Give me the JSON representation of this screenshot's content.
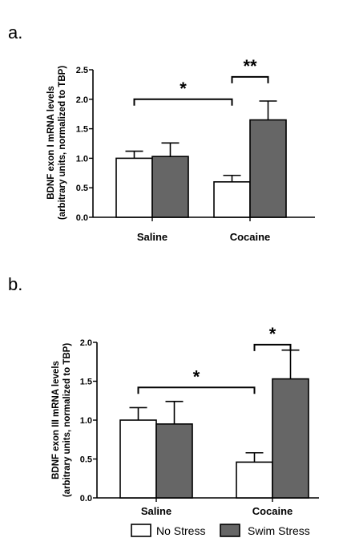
{
  "chart_data": [
    {
      "panel_label": "a.",
      "type": "bar",
      "categories": [
        "Saline",
        "Cocaine"
      ],
      "series": [
        {
          "name": "No Stress",
          "values": [
            1.0,
            0.6
          ],
          "errors": [
            0.12,
            0.11
          ],
          "color": "#ffffff"
        },
        {
          "name": "Swim Stress",
          "values": [
            1.03,
            1.65
          ],
          "errors": [
            0.23,
            0.32
          ],
          "color": "#666666"
        }
      ],
      "ylabel_lines": [
        "BDNF exon I mRNA levels",
        "(arbitrary units, normalized to TBP)"
      ],
      "ylim": [
        0,
        2.5
      ],
      "ticks": [
        0.0,
        0.5,
        1.0,
        1.5,
        2.0,
        2.5
      ],
      "tick_labels": [
        "0.0",
        "0.5",
        "1.0",
        "1.5",
        "2.0",
        "2.5"
      ],
      "significance": [
        {
          "label": "*",
          "from": [
            0,
            0
          ],
          "to": [
            1,
            0
          ],
          "y": 2.0
        },
        {
          "label": "**",
          "from": [
            1,
            0
          ],
          "to": [
            1,
            1
          ],
          "y": 2.38
        }
      ],
      "grid": false
    },
    {
      "panel_label": "b.",
      "type": "bar",
      "categories": [
        "Saline",
        "Cocaine"
      ],
      "series": [
        {
          "name": "No Stress",
          "values": [
            1.0,
            0.46
          ],
          "errors": [
            0.16,
            0.12
          ],
          "color": "#ffffff"
        },
        {
          "name": "Swim Stress",
          "values": [
            0.95,
            1.53
          ],
          "errors": [
            0.29,
            0.37
          ],
          "color": "#666666"
        }
      ],
      "ylabel_lines": [
        "BDNF exon III mRNA levels",
        "(arbitrary  units, normalized to TBP)"
      ],
      "ylim": [
        0,
        2.0
      ],
      "ticks": [
        0.0,
        0.5,
        1.0,
        1.5,
        2.0
      ],
      "tick_labels": [
        "0.0",
        "0.5",
        "1.0",
        "1.5",
        "2.0"
      ],
      "significance": [
        {
          "label": "*",
          "from": [
            0,
            0
          ],
          "to": [
            1,
            0
          ],
          "y": 1.42
        },
        {
          "label": "*",
          "from": [
            1,
            0
          ],
          "to": [
            1,
            1
          ],
          "y": 1.97
        }
      ],
      "grid": false
    }
  ],
  "legend": {
    "position": "bottom",
    "items": [
      {
        "label": "No Stress",
        "color": "#ffffff"
      },
      {
        "label": "Swim Stress",
        "color": "#666666"
      }
    ]
  }
}
